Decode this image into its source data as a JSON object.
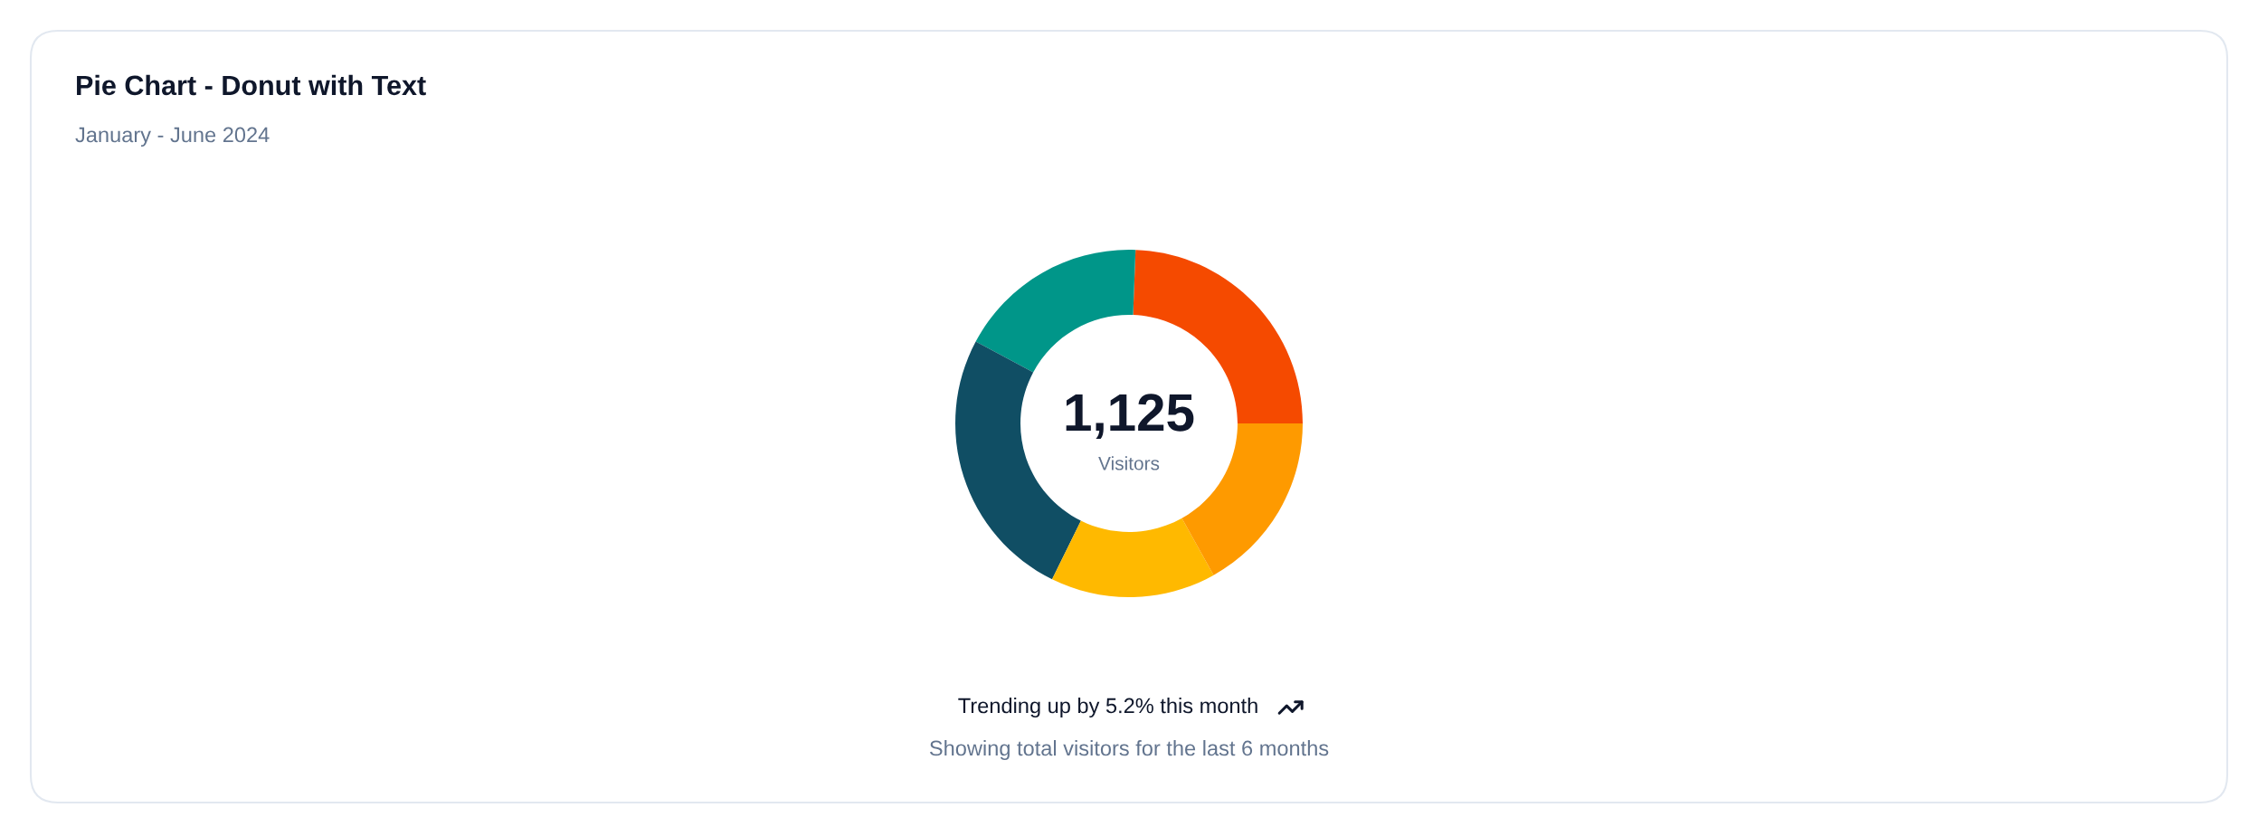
{
  "chart_data": {
    "type": "donut",
    "title": "Pie Chart - Donut with Text",
    "subtitle": "January - June 2024",
    "categories": [
      null,
      null,
      null,
      null,
      null
    ],
    "values": [
      24.4,
      17.8,
      25.5,
      15.4,
      16.9
    ],
    "colors": [
      "#f54a00",
      "#009689",
      "#104e64",
      "#ffb900",
      "#fe9a00"
    ],
    "annotations": [
      "1,125",
      "Visitors",
      "Trending up by 5.2% this month",
      "Showing total visitors for the last 6 months"
    ]
  }
}
